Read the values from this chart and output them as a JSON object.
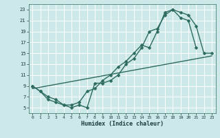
{
  "title": "",
  "xlabel": "Humidex (Indice chaleur)",
  "bg_color": "#cce8e8",
  "grid_color": "#ffffff",
  "line_color": "#2d6b5e",
  "xlim": [
    -0.5,
    23.5
  ],
  "ylim": [
    4,
    24
  ],
  "xticks": [
    0,
    1,
    2,
    3,
    4,
    5,
    6,
    7,
    8,
    9,
    10,
    11,
    12,
    13,
    14,
    15,
    16,
    17,
    18,
    19,
    20,
    21,
    22,
    23
  ],
  "yticks": [
    5,
    7,
    9,
    11,
    13,
    15,
    17,
    19,
    21,
    23
  ],
  "line1_x": [
    0,
    1,
    2,
    3,
    4,
    5,
    6,
    7,
    8,
    9,
    10,
    11,
    12,
    13,
    14,
    15,
    16,
    17,
    18,
    19,
    20,
    21
  ],
  "line1_y": [
    9,
    8,
    7,
    6.5,
    5.5,
    5.5,
    6,
    8,
    8.5,
    10,
    11,
    12.5,
    13.5,
    15,
    16.5,
    16,
    19,
    22.5,
    23,
    21.5,
    21,
    16
  ],
  "line2_x": [
    0,
    1,
    2,
    3,
    4,
    5,
    6,
    7,
    8,
    9,
    10,
    11,
    12,
    13,
    14,
    15,
    16,
    17,
    18,
    19,
    20,
    21,
    22,
    23
  ],
  "line2_y": [
    9,
    8,
    6.5,
    6,
    5.5,
    5,
    5.5,
    5,
    9.5,
    9.5,
    10,
    11,
    13,
    14,
    16,
    19,
    19.5,
    22,
    23,
    22.5,
    22,
    20,
    15,
    15
  ],
  "line3_x": [
    0,
    23
  ],
  "line3_y": [
    8.5,
    14.5
  ]
}
